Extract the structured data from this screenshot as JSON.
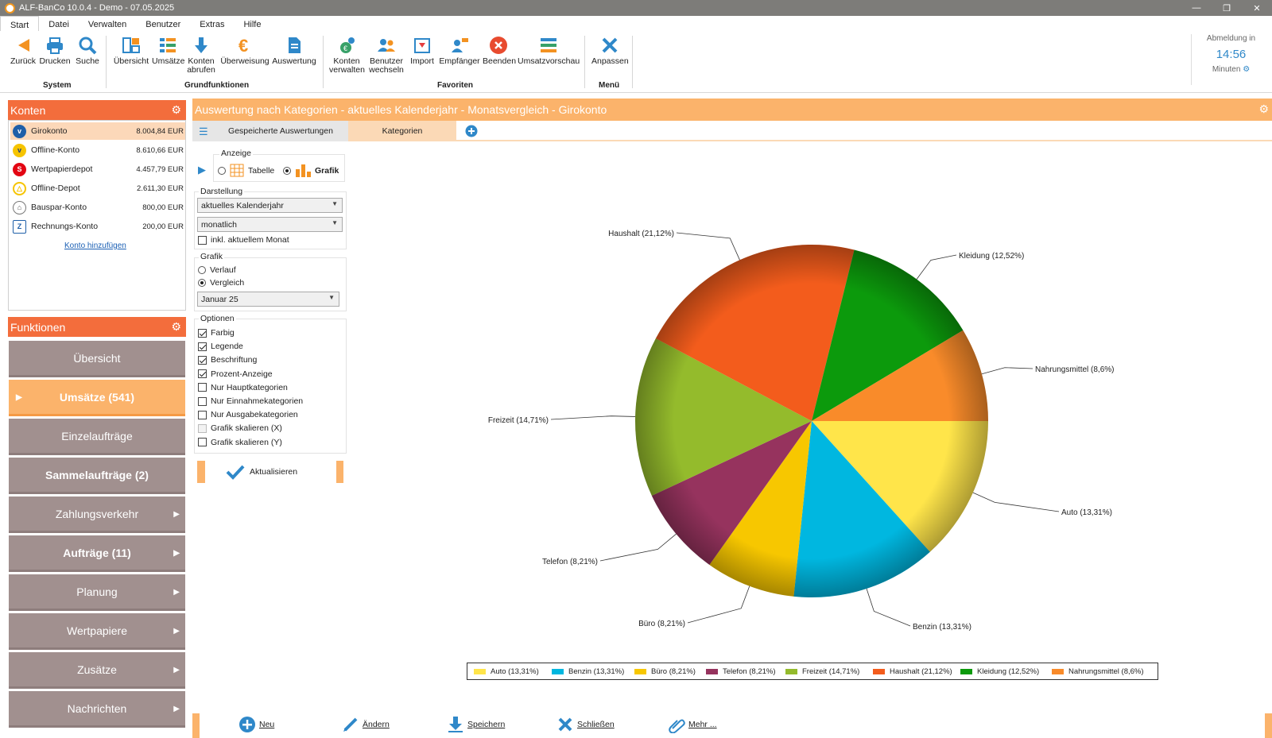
{
  "window": {
    "title": "ALF-BanCo 10.0.4 - Demo  -  07.05.2025"
  },
  "menu": [
    "Start",
    "Datei",
    "Verwalten",
    "Benutzer",
    "Extras",
    "Hilfe"
  ],
  "ribbon": {
    "buttons": {
      "zurueck": "Zurück",
      "drucken": "Drucken",
      "suche": "Suche",
      "uebersicht": "Übersicht",
      "umsaetze": "Umsätze",
      "konten_abrufen_1": "Konten",
      "konten_abrufen_2": "abrufen",
      "ueberweisung": "Überweisung",
      "auswertung": "Auswertung",
      "konten_verwalten_1": "Konten",
      "konten_verwalten_2": "verwalten",
      "benutzer_wechseln_1": "Benutzer",
      "benutzer_wechseln_2": "wechseln",
      "import": "Import",
      "empfaenger": "Empfänger",
      "beenden": "Beenden",
      "umsatzvorschau": "Umsatzvorschau",
      "anpassen": "Anpassen"
    },
    "groups": {
      "system": "System",
      "grundfunktionen": "Grundfunktionen",
      "favoriten": "Favoriten",
      "menue": "Menü"
    },
    "logout": {
      "label": "Abmeldung in",
      "time": "14:56",
      "unit": "Minuten"
    }
  },
  "konten": {
    "title": "Konten",
    "items": [
      {
        "name": "Girokonto",
        "amount": "8.004,84 EUR"
      },
      {
        "name": "Offline-Konto",
        "amount": "8.610,66 EUR"
      },
      {
        "name": "Wertpapierdepot",
        "amount": "4.457,79 EUR"
      },
      {
        "name": "Offline-Depot",
        "amount": "2.611,30 EUR"
      },
      {
        "name": "Bauspar-Konto",
        "amount": "800,00 EUR"
      },
      {
        "name": "Rechnungs-Konto",
        "amount": "200,00 EUR"
      }
    ],
    "add_link": "Konto hinzufügen"
  },
  "funktionen": {
    "title": "Funktionen",
    "items": [
      "Übersicht",
      "Umsätze (541)",
      "Einzelaufträge",
      "Sammelaufträge (2)",
      "Zahlungsverkehr",
      "Aufträge (11)",
      "Planung",
      "Wertpapiere",
      "Zusätze",
      "Nachrichten"
    ]
  },
  "main": {
    "title": "Auswertung nach Kategorien - aktuelles Kalenderjahr - Monatsvergleich - Girokonto",
    "tabs": [
      "Gespeicherte Auswertungen",
      "Kategorien"
    ]
  },
  "options": {
    "anzeige": {
      "title": "Anzeige",
      "tabelle": "Tabelle",
      "grafik": "Grafik"
    },
    "darstellung": {
      "title": "Darstellung",
      "zeitraum": "aktuelles Kalenderjahr",
      "intervall": "monatlich",
      "inkl": "inkl. aktuellem Monat"
    },
    "grafik": {
      "title": "Grafik",
      "verlauf": "Verlauf",
      "vergleich": "Vergleich",
      "monat": "Januar 25"
    },
    "optionen": {
      "title": "Optionen",
      "items": [
        "Farbig",
        "Legende",
        "Beschriftung",
        "Prozent-Anzeige",
        "Nur Hauptkategorien",
        "Nur Einnahmekategorien",
        "Nur Ausgabekategorien",
        "Grafik skalieren (X)",
        "Grafik skalieren (Y)"
      ],
      "checked": [
        true,
        true,
        true,
        true,
        false,
        false,
        false,
        false,
        false
      ]
    },
    "aktualisieren": "Aktualisieren"
  },
  "chart_data": {
    "type": "pie",
    "slices": [
      {
        "label": "Auto (13,31%)",
        "value": 13.31,
        "color": "#ffe54a"
      },
      {
        "label": "Benzin (13,31%)",
        "value": 13.31,
        "color": "#00b7e0"
      },
      {
        "label": "Büro (8,21%)",
        "value": 8.21,
        "color": "#f7c700"
      },
      {
        "label": "Telefon (8,21%)",
        "value": 8.21,
        "color": "#96335e"
      },
      {
        "label": "Freizeit (14,71%)",
        "value": 14.71,
        "color": "#94bb2c"
      },
      {
        "label": "Haushalt (21,12%)",
        "value": 21.12,
        "color": "#f35c1c"
      },
      {
        "label": "Kleidung (12,52%)",
        "value": 12.52,
        "color": "#0c9a0c"
      },
      {
        "label": "Nahrungsmittel (8,6%)",
        "value": 8.6,
        "color": "#f98b2a"
      }
    ]
  },
  "bottom": {
    "neu": "Neu",
    "aendern": "Ändern",
    "speichern": "Speichern",
    "schliessen": "Schließen",
    "mehr": "Mehr ..."
  },
  "colors": {
    "accent": "#f36d3c",
    "accent_light": "#fbb36b",
    "function_btn": "#a1908f",
    "blue": "#2f88c9"
  }
}
